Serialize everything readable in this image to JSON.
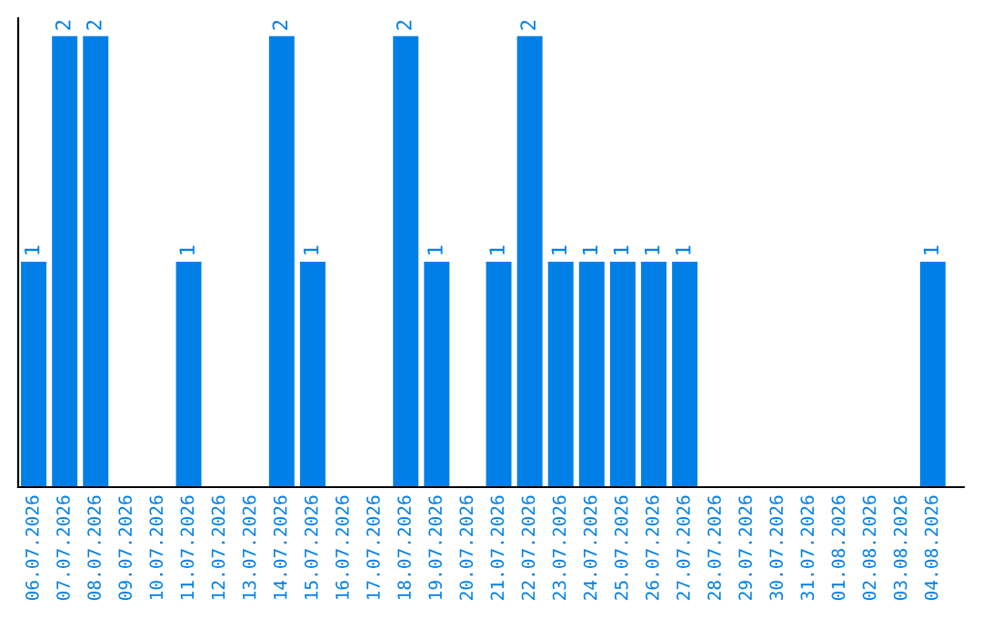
{
  "chart_data": {
    "type": "bar",
    "categories": [
      "06.07.2026",
      "07.07.2026",
      "08.07.2026",
      "09.07.2026",
      "10.07.2026",
      "11.07.2026",
      "12.07.2026",
      "13.07.2026",
      "14.07.2026",
      "15.07.2026",
      "16.07.2026",
      "17.07.2026",
      "18.07.2026",
      "19.07.2026",
      "20.07.2026",
      "21.07.2026",
      "22.07.2026",
      "23.07.2026",
      "24.07.2026",
      "25.07.2026",
      "26.07.2026",
      "27.07.2026",
      "28.07.2026",
      "29.07.2026",
      "30.07.2026",
      "31.07.2026",
      "01.08.2026",
      "02.08.2026",
      "03.08.2026",
      "04.08.2026"
    ],
    "values": [
      1,
      2,
      2,
      0,
      0,
      1,
      0,
      0,
      2,
      1,
      0,
      0,
      2,
      1,
      0,
      1,
      2,
      1,
      1,
      1,
      1,
      1,
      0,
      0,
      0,
      0,
      0,
      0,
      0,
      1
    ],
    "value_labels": [
      "1",
      "2",
      "2",
      null,
      null,
      "1",
      null,
      null,
      "2",
      "1",
      null,
      null,
      "2",
      "1",
      null,
      "1",
      "2",
      "1",
      "1",
      "1",
      "1",
      "1",
      null,
      null,
      null,
      null,
      null,
      null,
      null,
      "1"
    ],
    "color": "#0080e6",
    "grid": false,
    "legend": false
  }
}
